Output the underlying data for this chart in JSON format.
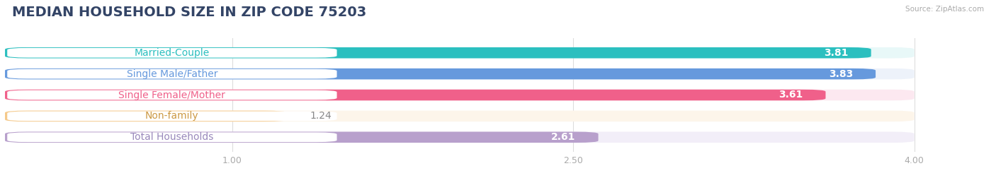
{
  "title": "MEDIAN HOUSEHOLD SIZE IN ZIP CODE 75203",
  "source": "Source: ZipAtlas.com",
  "categories": [
    "Married-Couple",
    "Single Male/Father",
    "Single Female/Mother",
    "Non-family",
    "Total Households"
  ],
  "values": [
    3.81,
    3.83,
    3.61,
    1.24,
    2.61
  ],
  "bar_colors": [
    "#2bbfbf",
    "#6699dd",
    "#f0608a",
    "#f5c98a",
    "#b8a0cc"
  ],
  "bg_colors": [
    "#e8f8f8",
    "#edf2fa",
    "#fce8f0",
    "#fdf5ea",
    "#f2eef8"
  ],
  "label_text_colors": [
    "#2bbfbf",
    "#6699dd",
    "#f0608a",
    "#cc9944",
    "#9988bb"
  ],
  "xlim": [
    0,
    4.25
  ],
  "xticks": [
    1.0,
    2.5,
    4.0
  ],
  "title_fontsize": 14,
  "label_fontsize": 10,
  "value_fontsize": 10,
  "bar_height": 0.52,
  "background_color": "#ffffff"
}
